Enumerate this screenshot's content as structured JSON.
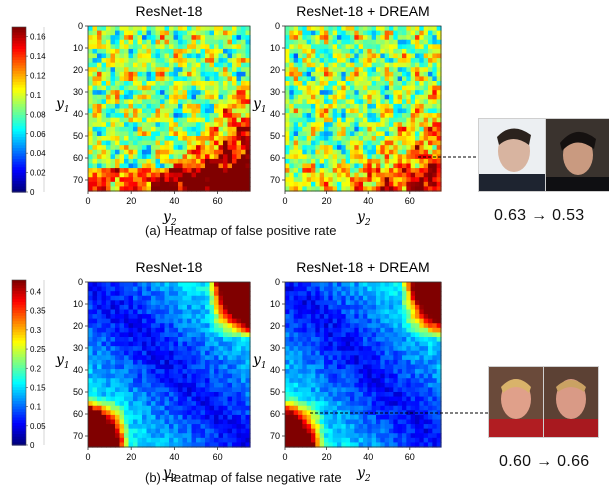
{
  "panels": [
    {
      "id": "a",
      "caption": "(a) Heatmap of false positive rate",
      "colorbar_ticks": [
        "0.16",
        "0.14",
        "0.12",
        "0.1",
        "0.08",
        "0.06",
        "0.04",
        "0.02",
        "0"
      ],
      "comparison": "0.63 → 0.53",
      "before": 0.63,
      "after": 0.53
    },
    {
      "id": "b",
      "caption": "(b) Heatmap of false negative rate",
      "colorbar_ticks": [
        "0.4",
        "0.35",
        "0.3",
        "0.25",
        "0.2",
        "0.15",
        "0.1",
        "0.05",
        "0"
      ],
      "comparison": "0.60 → 0.66",
      "before": 0.6,
      "after": 0.66
    }
  ],
  "chart_data": [
    {
      "type": "heatmap",
      "title": "ResNet-18",
      "xlabel": "y2",
      "ylabel": "y1",
      "x_ticks": [
        "0",
        "20",
        "40",
        "60"
      ],
      "y_ticks": [
        "0",
        "10",
        "20",
        "30",
        "40",
        "50",
        "60",
        "70"
      ],
      "xlim": [
        0,
        75
      ],
      "ylim": [
        0,
        75
      ],
      "colorbar_range": [
        0,
        0.17
      ],
      "pattern": "mostly mid values (~0.08-0.12) with speckle; high values (~0.15-0.17) in bottom-right corner and lower edge"
    },
    {
      "type": "heatmap",
      "title": "ResNet-18 + DREAM",
      "xlabel": "y2",
      "ylabel": "y1",
      "x_ticks": [
        "0",
        "20",
        "40",
        "60"
      ],
      "y_ticks": [
        "0",
        "10",
        "20",
        "30",
        "40",
        "50",
        "60",
        "70"
      ],
      "xlim": [
        0,
        75
      ],
      "ylim": [
        0,
        75
      ],
      "colorbar_range": [
        0,
        0.17
      ],
      "pattern": "similar to ResNet-18 but slightly lower; bottom-right hot region reduced"
    },
    {
      "type": "heatmap",
      "title": "ResNet-18",
      "xlabel": "y2",
      "ylabel": "y1",
      "x_ticks": [
        "0",
        "20",
        "40",
        "60"
      ],
      "y_ticks": [
        "0",
        "10",
        "20",
        "30",
        "40",
        "50",
        "60",
        "70"
      ],
      "xlim": [
        0,
        75
      ],
      "ylim": [
        0,
        75
      ],
      "colorbar_range": [
        0,
        0.43
      ],
      "pattern": "low values (~0.05) along diagonal band; high values (~0.3-0.4) in top-right and bottom-left corners"
    },
    {
      "type": "heatmap",
      "title": "ResNet-18 + DREAM",
      "xlabel": "y2",
      "ylabel": "y1",
      "x_ticks": [
        "0",
        "20",
        "40",
        "60"
      ],
      "y_ticks": [
        "0",
        "10",
        "20",
        "30",
        "40",
        "50",
        "60",
        "70"
      ],
      "xlim": [
        0,
        75
      ],
      "ylim": [
        0,
        75
      ],
      "colorbar_range": [
        0,
        0.43
      ],
      "pattern": "similar diagonal low band; slightly weaker corners than ResNet-18"
    }
  ]
}
